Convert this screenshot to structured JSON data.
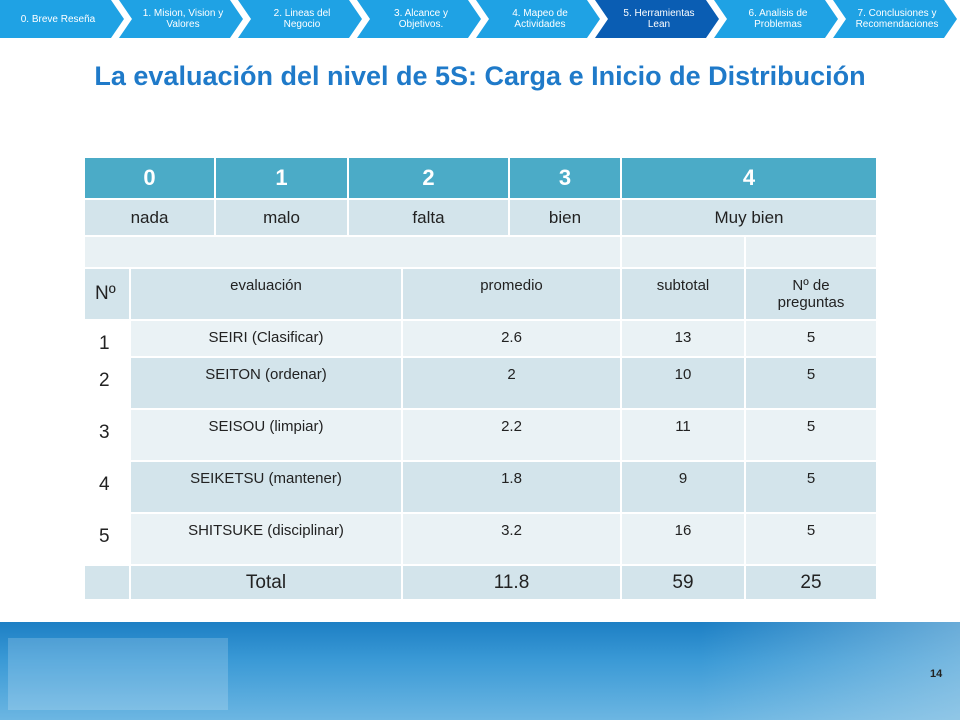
{
  "nav": {
    "tabs": [
      "0. Breve Reseña",
      "1. Mision, Vision y Valores",
      "2. Lineas del Negocio",
      "3. Alcance y Objetivos.",
      "4. Mapeo de Actividades",
      "5. Herramientas Lean",
      "6. Analisis de Problemas",
      "7. Conclusiones y Recomendaciones"
    ],
    "active": 5
  },
  "title": "La evaluación del nivel de 5S: Carga e Inicio de Distribución",
  "scale": {
    "values": [
      0,
      1,
      2,
      3,
      4
    ],
    "labels": [
      "nada",
      "malo",
      "falta",
      "bien",
      "Muy bien"
    ]
  },
  "table": {
    "header": [
      "Nº",
      "evaluación",
      "promedio",
      "subtotal",
      "Nº de preguntas"
    ],
    "rows": [
      [
        1,
        "SEIRI (Clasificar)",
        2.6,
        13,
        5
      ],
      [
        2,
        "SEITON (ordenar)",
        2,
        10,
        5
      ],
      [
        3,
        "SEISOU (limpiar)",
        2.2,
        11,
        5
      ],
      [
        4,
        "SEIKETSU (mantener)",
        1.8,
        9,
        5
      ],
      [
        5,
        "SHITSUKE (disciplinar)",
        3.2,
        16,
        5
      ]
    ],
    "total": {
      "label": "Total",
      "promedio": 11.8,
      "subtotal": 59,
      "preguntas": 25
    }
  },
  "page_number": 14
}
